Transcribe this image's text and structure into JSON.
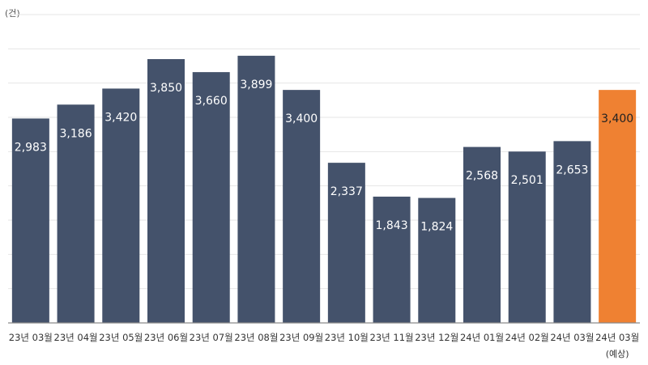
{
  "chart_data": {
    "type": "bar",
    "unit_label": "(건)",
    "categories": [
      "23년 03월",
      "23년 04월",
      "23년 05월",
      "23년 06월",
      "23년 07월",
      "23년 08월",
      "23년 09월",
      "23년 10월",
      "23년 11월",
      "23년 12월",
      "24년 01월",
      "24년 02월",
      "24년 03월",
      "24년 03월"
    ],
    "category_sublabels": [
      "",
      "",
      "",
      "",
      "",
      "",
      "",
      "",
      "",
      "",
      "",
      "",
      "",
      "(예상)"
    ],
    "values": [
      2983,
      3186,
      3420,
      3850,
      3660,
      3899,
      3400,
      2337,
      1843,
      1824,
      2568,
      2501,
      2653,
      3400
    ],
    "value_labels": [
      "2,983",
      "3,186",
      "3,420",
      "3,850",
      "3,660",
      "3,899",
      "3,400",
      "2,337",
      "1,843",
      "1,824",
      "2,568",
      "2,501",
      "2,653",
      "3,400"
    ],
    "highlight_index": 13,
    "ylim": [
      0,
      4500
    ],
    "grid": true,
    "legend": "none",
    "colors": {
      "bar": "#44526b",
      "highlight": "#ef8132",
      "grid": "#e6e6e6",
      "axis": "#8a8a8a",
      "label_on_bar": "#ffffff",
      "label_on_highlight": "#222222"
    }
  }
}
